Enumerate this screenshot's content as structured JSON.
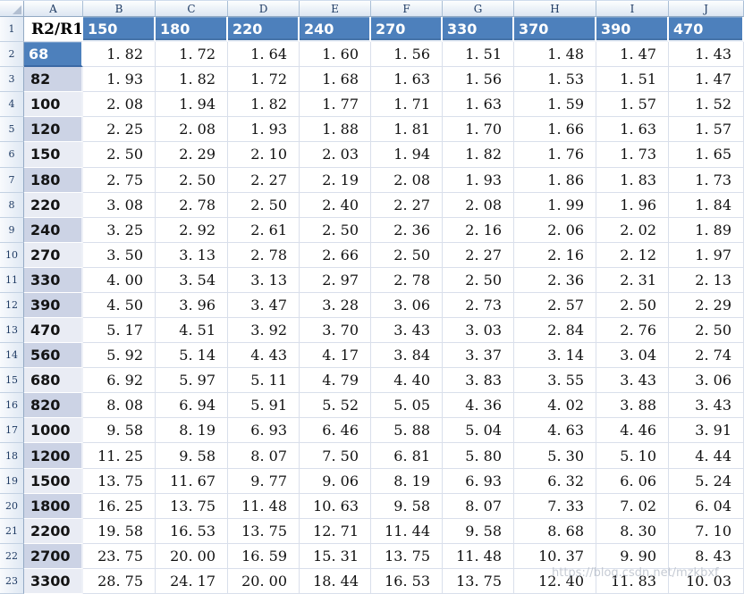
{
  "colors": {
    "header_blue": "#4d80bc",
    "band_dark": "#ccd3e5",
    "band_light": "#e9ecf4",
    "gridline": "#d9dfeb",
    "chrome_text": "#1f3b63",
    "selected_cell_border": "#3b69a5"
  },
  "sheet": {
    "column_letters": [
      "A",
      "B",
      "C",
      "D",
      "E",
      "F",
      "G",
      "H",
      "I",
      "J"
    ],
    "row_numbers": [
      "1",
      "2",
      "3",
      "4",
      "5",
      "6",
      "7",
      "8",
      "9",
      "10",
      "11",
      "12",
      "13",
      "14",
      "15",
      "16",
      "17",
      "18",
      "19",
      "20",
      "21",
      "22",
      "23"
    ]
  },
  "table": {
    "corner_label": "R2/R1",
    "column_headers": [
      "150",
      "180",
      "220",
      "240",
      "270",
      "330",
      "370",
      "390",
      "470"
    ],
    "rows": [
      {
        "label": "68",
        "band": "blue",
        "values": [
          "1. 82",
          "1. 72",
          "1. 64",
          "1. 60",
          "1. 56",
          "1. 51",
          "1. 48",
          "1. 47",
          "1. 43"
        ]
      },
      {
        "label": "82",
        "band": "dark",
        "values": [
          "1. 93",
          "1. 82",
          "1. 72",
          "1. 68",
          "1. 63",
          "1. 56",
          "1. 53",
          "1. 51",
          "1. 47"
        ]
      },
      {
        "label": "100",
        "band": "light",
        "values": [
          "2. 08",
          "1. 94",
          "1. 82",
          "1. 77",
          "1. 71",
          "1. 63",
          "1. 59",
          "1. 57",
          "1. 52"
        ]
      },
      {
        "label": "120",
        "band": "dark",
        "values": [
          "2. 25",
          "2. 08",
          "1. 93",
          "1. 88",
          "1. 81",
          "1. 70",
          "1. 66",
          "1. 63",
          "1. 57"
        ]
      },
      {
        "label": "150",
        "band": "light",
        "values": [
          "2. 50",
          "2. 29",
          "2. 10",
          "2. 03",
          "1. 94",
          "1. 82",
          "1. 76",
          "1. 73",
          "1. 65"
        ]
      },
      {
        "label": "180",
        "band": "dark",
        "values": [
          "2. 75",
          "2. 50",
          "2. 27",
          "2. 19",
          "2. 08",
          "1. 93",
          "1. 86",
          "1. 83",
          "1. 73"
        ]
      },
      {
        "label": "220",
        "band": "light",
        "values": [
          "3. 08",
          "2. 78",
          "2. 50",
          "2. 40",
          "2. 27",
          "2. 08",
          "1. 99",
          "1. 96",
          "1. 84"
        ]
      },
      {
        "label": "240",
        "band": "dark",
        "values": [
          "3. 25",
          "2. 92",
          "2. 61",
          "2. 50",
          "2. 36",
          "2. 16",
          "2. 06",
          "2. 02",
          "1. 89"
        ]
      },
      {
        "label": "270",
        "band": "light",
        "values": [
          "3. 50",
          "3. 13",
          "2. 78",
          "2. 66",
          "2. 50",
          "2. 27",
          "2. 16",
          "2. 12",
          "1. 97"
        ]
      },
      {
        "label": "330",
        "band": "dark",
        "values": [
          "4. 00",
          "3. 54",
          "3. 13",
          "2. 97",
          "2. 78",
          "2. 50",
          "2. 36",
          "2. 31",
          "2. 13"
        ]
      },
      {
        "label": "390",
        "band": "dark",
        "values": [
          "4. 50",
          "3. 96",
          "3. 47",
          "3. 28",
          "3. 06",
          "2. 73",
          "2. 57",
          "2. 50",
          "2. 29"
        ]
      },
      {
        "label": "470",
        "band": "light",
        "values": [
          "5. 17",
          "4. 51",
          "3. 92",
          "3. 70",
          "3. 43",
          "3. 03",
          "2. 84",
          "2. 76",
          "2. 50"
        ]
      },
      {
        "label": "560",
        "band": "dark",
        "values": [
          "5. 92",
          "5. 14",
          "4. 43",
          "4. 17",
          "3. 84",
          "3. 37",
          "3. 14",
          "3. 04",
          "2. 74"
        ]
      },
      {
        "label": "680",
        "band": "light",
        "values": [
          "6. 92",
          "5. 97",
          "5. 11",
          "4. 79",
          "4. 40",
          "3. 83",
          "3. 55",
          "3. 43",
          "3. 06"
        ]
      },
      {
        "label": "820",
        "band": "dark",
        "values": [
          "8. 08",
          "6. 94",
          "5. 91",
          "5. 52",
          "5. 05",
          "4. 36",
          "4. 02",
          "3. 88",
          "3. 43"
        ]
      },
      {
        "label": "1000",
        "band": "light",
        "values": [
          "9. 58",
          "8. 19",
          "6. 93",
          "6. 46",
          "5. 88",
          "5. 04",
          "4. 63",
          "4. 46",
          "3. 91"
        ]
      },
      {
        "label": "1200",
        "band": "dark",
        "values": [
          "11. 25",
          "9. 58",
          "8. 07",
          "7. 50",
          "6. 81",
          "5. 80",
          "5. 30",
          "5. 10",
          "4. 44"
        ]
      },
      {
        "label": "1500",
        "band": "light",
        "values": [
          "13. 75",
          "11. 67",
          "9. 77",
          "9. 06",
          "8. 19",
          "6. 93",
          "6. 32",
          "6. 06",
          "5. 24"
        ]
      },
      {
        "label": "1800",
        "band": "dark",
        "values": [
          "16. 25",
          "13. 75",
          "11. 48",
          "10. 63",
          "9. 58",
          "8. 07",
          "7. 33",
          "7. 02",
          "6. 04"
        ]
      },
      {
        "label": "2200",
        "band": "light",
        "values": [
          "19. 58",
          "16. 53",
          "13. 75",
          "12. 71",
          "11. 44",
          "9. 58",
          "8. 68",
          "8. 30",
          "7. 10"
        ]
      },
      {
        "label": "2700",
        "band": "dark",
        "values": [
          "23. 75",
          "20. 00",
          "16. 59",
          "15. 31",
          "13. 75",
          "11. 48",
          "10. 37",
          "9. 90",
          "8. 43"
        ]
      },
      {
        "label": "3300",
        "band": "light",
        "values": [
          "28. 75",
          "24. 17",
          "20. 00",
          "18. 44",
          "16. 53",
          "13. 75",
          "12. 40",
          "11. 83",
          "10. 03"
        ]
      }
    ]
  },
  "watermark": {
    "text": "https://blog.csdn.net/mzkbxf"
  }
}
